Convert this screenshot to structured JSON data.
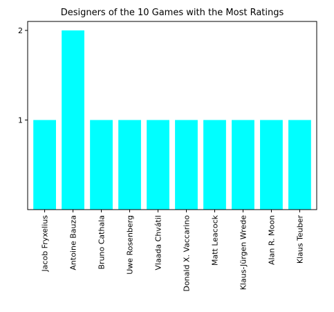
{
  "chart_data": {
    "type": "bar",
    "title": "Designers of the 10 Games with the Most Ratings",
    "xlabel": "",
    "ylabel": "",
    "categories": [
      "Jacob Fryxelius",
      "Antoine Bauza",
      "Bruno Cathala",
      "Uwe Rosenberg",
      "Vlaada Chvátil",
      "Donald X. Vaccarino",
      "Matt Leacock",
      "Klaus-Jürgen Wrede",
      "Alan R. Moon",
      "Klaus Teuber"
    ],
    "values": [
      1,
      2,
      1,
      1,
      1,
      1,
      1,
      1,
      1,
      1
    ],
    "yticks": [
      "1",
      "2"
    ],
    "ylim": [
      0,
      2
    ],
    "grid": false,
    "legend": "none",
    "bar_color": "#00ffff"
  }
}
